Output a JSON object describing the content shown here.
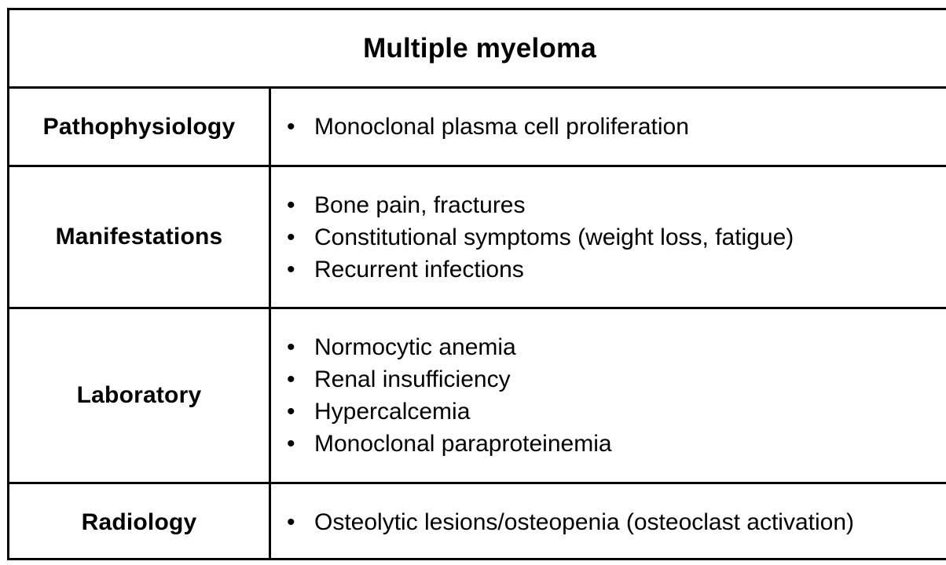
{
  "title": "Multiple myeloma",
  "rows": [
    {
      "label": "Pathophysiology",
      "items": [
        "Monoclonal plasma cell proliferation"
      ]
    },
    {
      "label": "Manifestations",
      "items": [
        "Bone pain, fractures",
        "Constitutional symptoms (weight loss, fatigue)",
        "Recurrent infections"
      ]
    },
    {
      "label": "Laboratory",
      "items": [
        "Normocytic anemia",
        "Renal insufficiency",
        "Hypercalcemia",
        "Monoclonal paraproteinemia"
      ]
    },
    {
      "label": "Radiology",
      "items": [
        "Osteolytic lesions/osteopenia (osteoclast activation)"
      ]
    }
  ]
}
